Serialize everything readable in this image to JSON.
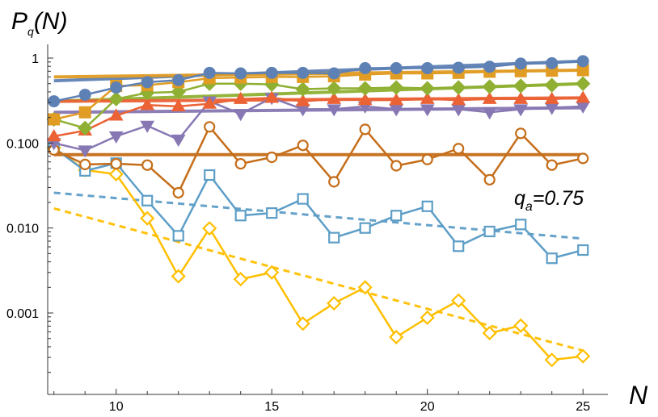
{
  "chart_data": {
    "type": "line",
    "y_scale": "log",
    "xlabel": "N",
    "ylabel": {
      "main": "P",
      "sub": "q",
      "rest": "(N)"
    },
    "xlim": [
      7.8,
      25.8
    ],
    "ylim": [
      0.00011,
      1.45
    ],
    "x_ticks": [
      10,
      15,
      20,
      25
    ],
    "x_tick_labels": [
      "10",
      "15",
      "20",
      "25"
    ],
    "y_ticks": [
      1,
      0.1,
      0.01,
      0.001
    ],
    "y_tick_labels": [
      "1",
      "0.100",
      "0.010",
      "0.001"
    ],
    "annotation": {
      "main": "q",
      "sub": "a",
      "rest": "=0.75"
    },
    "x": [
      8,
      9,
      10,
      11,
      12,
      13,
      14,
      15,
      16,
      17,
      18,
      19,
      20,
      21,
      22,
      23,
      24,
      25
    ],
    "series": [
      {
        "name": "blue-filled-circles",
        "color": "#5E81B5",
        "marker": "circle",
        "filled": true,
        "values": [
          0.31,
          0.37,
          0.45,
          0.52,
          0.55,
          0.67,
          0.66,
          0.67,
          0.67,
          0.66,
          0.76,
          0.76,
          0.76,
          0.77,
          0.79,
          0.86,
          0.87,
          0.92
        ],
        "fit": [
          0.54,
          0.92
        ]
      },
      {
        "name": "orange-filled-squares",
        "color": "#E19C24",
        "marker": "square",
        "filled": true,
        "values": [
          0.19,
          0.23,
          0.47,
          0.48,
          0.52,
          0.58,
          0.59,
          0.6,
          0.6,
          0.61,
          0.64,
          0.66,
          0.66,
          0.67,
          0.69,
          0.7,
          0.71,
          0.72
        ],
        "fit": [
          0.6,
          0.72
        ]
      },
      {
        "name": "green-filled-diamonds",
        "color": "#8FB032",
        "marker": "diamond",
        "filled": true,
        "values": [
          0.19,
          0.15,
          0.33,
          0.39,
          0.4,
          0.5,
          0.5,
          0.49,
          0.43,
          0.44,
          0.44,
          0.45,
          0.44,
          0.45,
          0.46,
          0.47,
          0.48,
          0.5
        ],
        "fit": [
          0.31,
          0.5
        ]
      },
      {
        "name": "red-filled-triangles-up",
        "color": "#EB6235",
        "marker": "triangle-up",
        "filled": true,
        "values": [
          0.12,
          0.14,
          0.21,
          0.28,
          0.27,
          0.29,
          0.33,
          0.34,
          0.31,
          0.33,
          0.32,
          0.32,
          0.33,
          0.32,
          0.33,
          0.33,
          0.33,
          0.34
        ],
        "fit": [
          0.31,
          0.34
        ]
      },
      {
        "name": "purple-filled-triangles-down",
        "color": "#8778B3",
        "marker": "triangle-down",
        "filled": true,
        "values": [
          0.1,
          0.082,
          0.12,
          0.16,
          0.11,
          0.31,
          0.22,
          0.34,
          0.25,
          0.25,
          0.27,
          0.25,
          0.25,
          0.25,
          0.23,
          0.25,
          0.26,
          0.27
        ],
        "fit": [
          0.23,
          0.26
        ]
      },
      {
        "name": "brown-open-circles",
        "color": "#C56E1A",
        "marker": "circle",
        "filled": false,
        "values": [
          0.083,
          0.056,
          0.057,
          0.055,
          0.026,
          0.155,
          0.057,
          0.068,
          0.094,
          0.035,
          0.145,
          0.054,
          0.064,
          0.086,
          0.037,
          0.13,
          0.055,
          0.066
        ],
        "fit": [
          0.073,
          0.073
        ]
      },
      {
        "name": "lightblue-open-squares",
        "color": "#5D9EC7",
        "marker": "square",
        "filled": false,
        "values": [
          0.088,
          0.047,
          0.058,
          0.021,
          0.0081,
          0.042,
          0.014,
          0.015,
          0.022,
          0.0077,
          0.01,
          0.014,
          0.018,
          0.0061,
          0.0091,
          0.011,
          0.0044,
          0.0055
        ],
        "fit": [
          0.026,
          0.0075
        ]
      },
      {
        "name": "yellow-open-diamonds",
        "color": "#FFBF00",
        "marker": "diamond",
        "filled": false,
        "values": [
          0.088,
          0.048,
          0.043,
          0.013,
          0.0027,
          0.0099,
          0.0025,
          0.003,
          0.00075,
          0.0013,
          0.002,
          0.00052,
          0.00088,
          0.0014,
          0.00058,
          0.00071,
          0.00028,
          0.00031
        ],
        "fit": [
          0.017,
          0.00036
        ]
      }
    ]
  }
}
